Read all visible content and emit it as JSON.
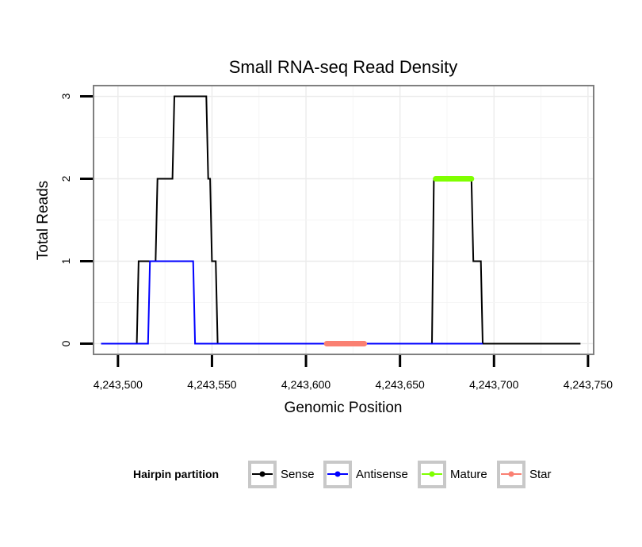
{
  "chart_data": {
    "type": "line",
    "title": "Small RNA-seq Read Density",
    "xlabel": "Genomic Position",
    "ylabel": "Total Reads",
    "xlim": [
      4243487,
      4243753
    ],
    "ylim": [
      -0.13,
      3.13
    ],
    "x_ticks": [
      4243500,
      4243550,
      4243600,
      4243650,
      4243700,
      4243750
    ],
    "x_tick_labels": [
      "4,243,500",
      "4,243,550",
      "4,243,600",
      "4,243,650",
      "4,243,700",
      "4,243,750"
    ],
    "y_ticks": [
      0,
      1,
      2,
      3
    ],
    "y_tick_labels": [
      "0",
      "1",
      "2",
      "3"
    ],
    "grid": true,
    "legend": {
      "title": "Hairpin partition",
      "position": "bottom",
      "entries": [
        "Sense",
        "Antisense",
        "Mature",
        "Star"
      ]
    },
    "series": [
      {
        "name": "Sense",
        "color": "#000000",
        "x": [
          4243491,
          4243510,
          4243511,
          4243520,
          4243521,
          4243529,
          4243530,
          4243547,
          4243548,
          4243549,
          4243550,
          4243552,
          4243553,
          4243667,
          4243668,
          4243688,
          4243689,
          4243693,
          4243694,
          4243746
        ],
        "y": [
          0,
          0,
          1,
          1,
          2,
          2,
          3,
          3,
          2,
          2,
          1,
          1,
          0,
          0,
          2,
          2,
          1,
          1,
          0,
          0
        ]
      },
      {
        "name": "Antisense",
        "color": "#0000ff",
        "x": [
          4243491,
          4243516,
          4243517,
          4243540,
          4243541,
          4243694
        ],
        "y": [
          0,
          0,
          1,
          1,
          0,
          0
        ]
      },
      {
        "name": "Mature",
        "color": "#7fff00",
        "x": [
          4243669,
          4243688
        ],
        "y": [
          2,
          2
        ]
      },
      {
        "name": "Star",
        "color": "#fa8072",
        "x": [
          4243611,
          4243631
        ],
        "y": [
          0,
          0
        ]
      }
    ]
  }
}
